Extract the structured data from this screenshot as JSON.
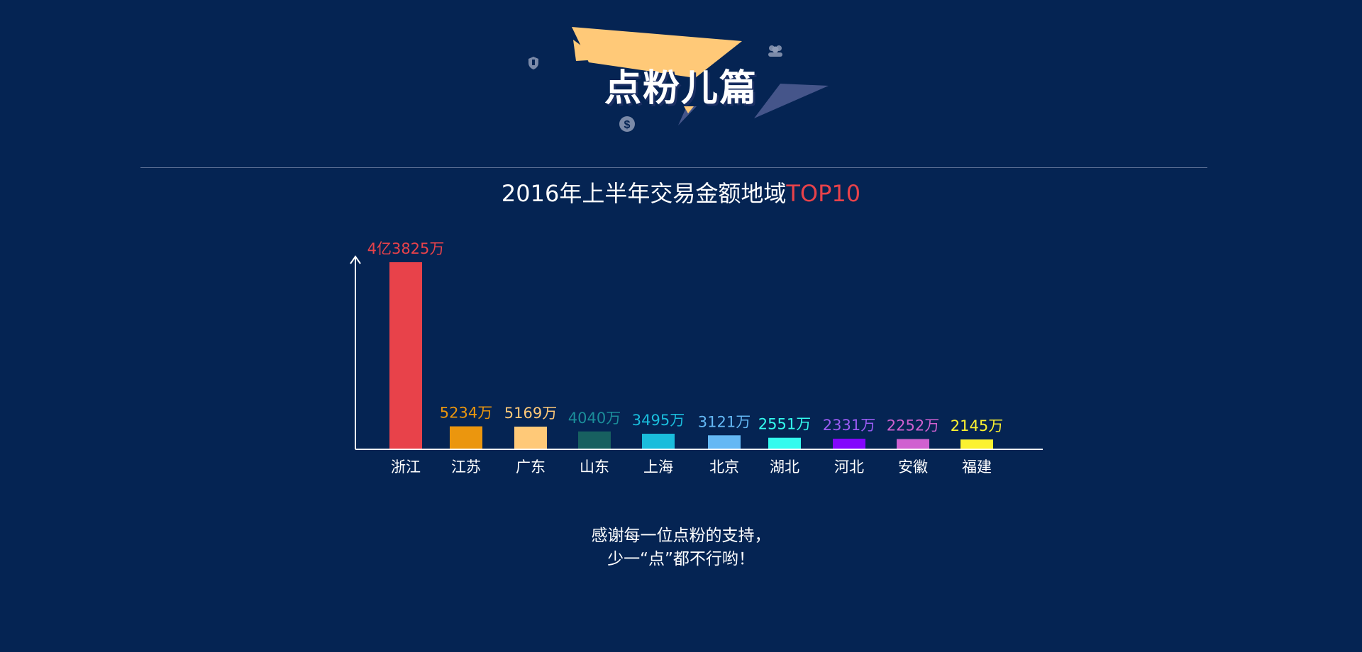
{
  "banner": {
    "title": "点粉儿篇",
    "icons": [
      "shield-icon",
      "people-icon",
      "dollar-coin-icon"
    ],
    "colors": {
      "gold": "#FFC978",
      "slate": "#45558A"
    }
  },
  "chart_title": {
    "text": "2016年上半年交易金额地域",
    "highlight": "TOP10",
    "highlight_color": "#E8424A"
  },
  "chart_data": {
    "type": "bar",
    "categories": [
      "浙江",
      "江苏",
      "广东",
      "山东",
      "上海",
      "北京",
      "湖北",
      "河北",
      "安徽",
      "福建"
    ],
    "values": [
      43825,
      5234,
      5169,
      4040,
      3495,
      3121,
      2551,
      2331,
      2252,
      2145
    ],
    "unit": "万",
    "data_labels": [
      "4亿3825万",
      "5234万",
      "5169万",
      "4040万",
      "3495万",
      "3121万",
      "2551万",
      "2331万",
      "2252万",
      "2145万"
    ],
    "colors": [
      "#E8424A",
      "#EB960E",
      "#FFC978",
      "#176060",
      "#1ABDDC",
      "#64B8F4",
      "#33FBEE",
      "#8306FC",
      "#D061D0",
      "#FCF230"
    ],
    "label_colors": [
      "#E8424A",
      "#EB960E",
      "#FFC978",
      "#1B8E9A",
      "#1ABDDC",
      "#64B8F4",
      "#33FBEE",
      "#9B5CF5",
      "#D061D0",
      "#FCF230"
    ],
    "title": "2016年上半年交易金额地域TOP10",
    "xlabel": "",
    "ylabel": "",
    "ylim": [
      0,
      45000
    ],
    "grid": false,
    "legend": "none"
  },
  "footer": {
    "line1": "感谢每一位点粉的支持，",
    "line2": "少一“点”都不行哟！"
  }
}
